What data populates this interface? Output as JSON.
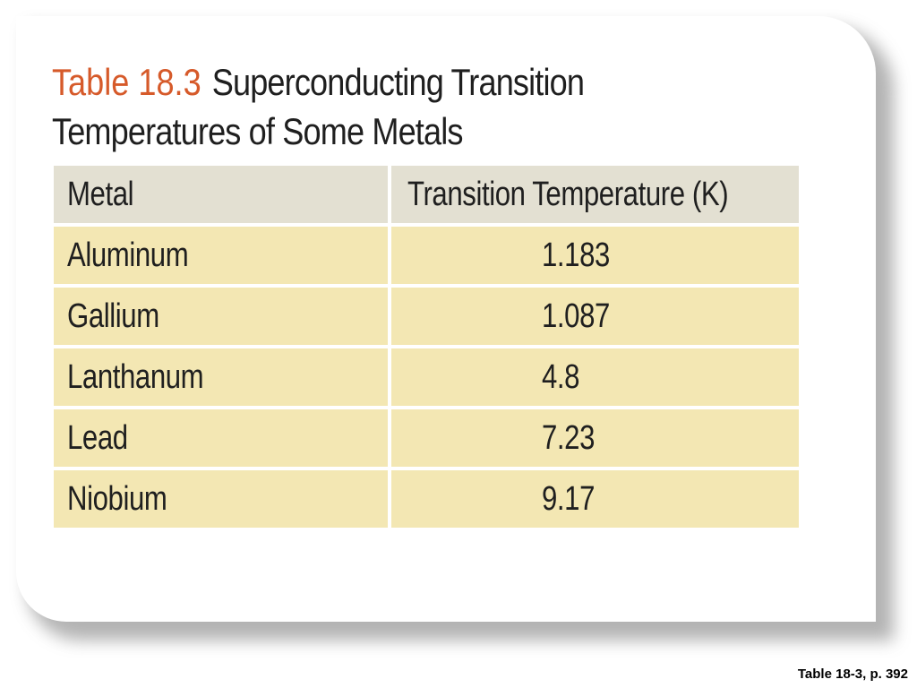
{
  "title": {
    "label": "Table 18.3",
    "text": "Superconducting Transition Temperatures of Some Metals"
  },
  "table": {
    "headers": [
      "Metal",
      "Transition Temperature (K)"
    ],
    "rows": [
      [
        "Aluminum",
        "1.183"
      ],
      [
        "Gallium",
        "1.087"
      ],
      [
        "Lanthanum",
        "4.8"
      ],
      [
        "Lead",
        "7.23"
      ],
      [
        "Niobium",
        "9.17"
      ]
    ]
  },
  "caption": "Table 18-3, p. 392",
  "colors": {
    "title_label": "#d65a2a",
    "header_bg": "#e3e0d2",
    "row_bg": "#f3e7b3",
    "text": "#1f1f1f"
  },
  "chart_data": {
    "type": "table",
    "title": "Table 18.3 Superconducting Transition Temperatures of Some Metals",
    "columns": [
      "Metal",
      "Transition Temperature (K)"
    ],
    "rows": [
      [
        "Aluminum",
        1.183
      ],
      [
        "Gallium",
        1.087
      ],
      [
        "Lanthanum",
        4.8
      ],
      [
        "Lead",
        7.23
      ],
      [
        "Niobium",
        9.17
      ]
    ]
  }
}
